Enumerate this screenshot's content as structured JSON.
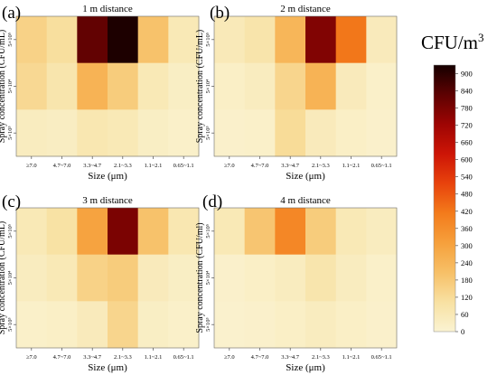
{
  "chart_data": [
    {
      "type": "heatmap",
      "panel_label": "(a)",
      "title": "1 m distance",
      "xlabel": "Size (μm)",
      "ylabel": "Spray concentration (CFU/mL)",
      "x_categories": [
        "≥7.0",
        "4.7~7.0",
        "3.3~4.7",
        "2.1~3.3",
        "1.1~2.1",
        "0.65~1.1"
      ],
      "y_categories": [
        "5×10⁵",
        "5×10⁴",
        "5×10³"
      ],
      "values": [
        [
          150,
          110,
          820,
          920,
          200,
          60
        ],
        [
          130,
          80,
          250,
          170,
          60,
          30
        ],
        [
          40,
          35,
          70,
          60,
          30,
          20
        ]
      ]
    },
    {
      "type": "heatmap",
      "panel_label": "(b)",
      "title": "2 m distance",
      "xlabel": "Size (μm)",
      "ylabel": "Spray concentration (CFU/mL)",
      "x_categories": [
        "≥7.0",
        "4.7~7.0",
        "3.3~4.7",
        "2.1~3.3",
        "1.1~2.1",
        "0.65~1.1"
      ],
      "y_categories": [
        "5×10⁵",
        "5×10⁴",
        "5×10³"
      ],
      "values": [
        [
          55,
          85,
          240,
          770,
          420,
          50
        ],
        [
          25,
          40,
          140,
          250,
          50,
          20
        ],
        [
          15,
          20,
          120,
          50,
          25,
          15
        ]
      ]
    },
    {
      "type": "heatmap",
      "panel_label": "(c)",
      "title": "3 m distance",
      "xlabel": "Size (μm)",
      "ylabel": "Spray concentration (CFU/mL)",
      "x_categories": [
        "≥7.0",
        "4.7~7.0",
        "3.3~4.7",
        "2.1~3.3",
        "1.1~2.1",
        "0.65~1.1"
      ],
      "y_categories": [
        "5×10⁵",
        "5×10⁴",
        "5×10³"
      ],
      "values": [
        [
          60,
          100,
          300,
          780,
          200,
          70
        ],
        [
          40,
          60,
          150,
          170,
          50,
          30
        ],
        [
          20,
          25,
          50,
          140,
          30,
          20
        ]
      ]
    },
    {
      "type": "heatmap",
      "panel_label": "(d)",
      "title": "4 m distance",
      "xlabel": "Size (μm)",
      "ylabel": "Spray concentration (CFU/ml)",
      "x_categories": [
        "≥7.0",
        "4.7~7.0",
        "3.3~4.7",
        "2.1~3.3",
        "1.1~2.1",
        "0.65~1.1"
      ],
      "y_categories": [
        "5×10⁵",
        "5×10⁴",
        "5×10³"
      ],
      "values": [
        [
          60,
          190,
          380,
          170,
          60,
          40
        ],
        [
          15,
          25,
          40,
          80,
          40,
          20
        ],
        [
          10,
          15,
          25,
          40,
          25,
          15
        ]
      ]
    }
  ],
  "colorbar": {
    "title": "CFU/m",
    "title_superscript": "3",
    "range": [
      0,
      930
    ],
    "ticks": [
      0,
      60,
      120,
      180,
      240,
      300,
      360,
      420,
      480,
      540,
      600,
      660,
      720,
      780,
      840,
      900
    ],
    "colors": [
      "#faf3d2",
      "#f8e1a2",
      "#f7c067",
      "#f6a03c",
      "#f37b1b",
      "#e8430c",
      "#cd1506",
      "#9e0503",
      "#5e0202",
      "#160000"
    ]
  }
}
